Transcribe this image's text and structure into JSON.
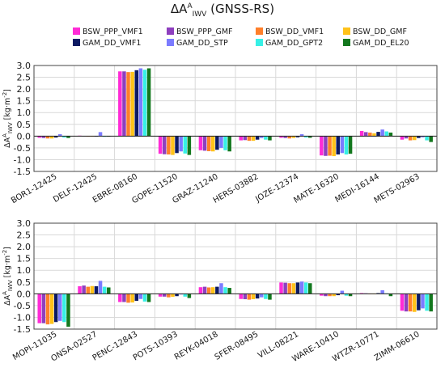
{
  "title": {
    "main": "ΔA",
    "sup": "A",
    "sub": "IWV",
    "suffix": " (GNSS-RS)"
  },
  "legend": [
    {
      "name": "BSW_PPP_VMF1",
      "color": "#ff2bd6"
    },
    {
      "name": "BSW_PPP_GMF",
      "color": "#8e3fbf"
    },
    {
      "name": "BSW_DD_VMF1",
      "color": "#ff7f2a"
    },
    {
      "name": "BSW_DD_GMF",
      "color": "#ffc21a"
    },
    {
      "name": "GAM_DD_VMF1",
      "color": "#0d1a63"
    },
    {
      "name": "GAM_DD_STP",
      "color": "#7b7bff"
    },
    {
      "name": "GAM_DD_GPT2",
      "color": "#37f0e6"
    },
    {
      "name": "GAM_DD_EL20",
      "color": "#13781e"
    }
  ],
  "chart_data": [
    {
      "type": "bar",
      "ylabel": {
        "base": "ΔA",
        "sup": "A",
        "sub": "IWV",
        "unit": " [kg·m",
        "unit_sup": "-2",
        "close": "]"
      },
      "ylim": [
        -1.5,
        3.0
      ],
      "yticks": [
        -1.5,
        -1.0,
        -0.5,
        0.0,
        0.5,
        1.0,
        1.5,
        2.0,
        2.5,
        3.0
      ],
      "grid": true,
      "categories": [
        "BOR1-12425",
        "DELF-12425",
        "EBRE-08160",
        "GOPE-11520",
        "GRAZ-11240",
        "HERS-03882",
        "JOZE-12374",
        "MATE-16320",
        "MEDI-16144",
        "METS-02963"
      ],
      "series": [
        {
          "name": "BSW_PPP_VMF1",
          "values": [
            -0.07,
            0.02,
            2.75,
            -0.75,
            -0.6,
            -0.18,
            -0.07,
            -0.82,
            0.22,
            -0.15
          ]
        },
        {
          "name": "BSW_PPP_GMF",
          "values": [
            -0.08,
            0.01,
            2.75,
            -0.77,
            -0.62,
            -0.17,
            -0.08,
            -0.84,
            0.17,
            -0.1
          ]
        },
        {
          "name": "BSW_DD_VMF1",
          "values": [
            -0.1,
            -0.02,
            2.72,
            -0.78,
            -0.64,
            -0.2,
            -0.1,
            -0.83,
            0.15,
            -0.18
          ]
        },
        {
          "name": "BSW_DD_GMF",
          "values": [
            -0.1,
            0.0,
            2.73,
            -0.8,
            -0.65,
            -0.2,
            -0.08,
            -0.85,
            0.12,
            -0.17
          ]
        },
        {
          "name": "GAM_DD_VMF1",
          "values": [
            -0.06,
            -0.02,
            2.8,
            -0.72,
            -0.58,
            -0.15,
            -0.05,
            -0.78,
            0.18,
            -0.08
          ]
        },
        {
          "name": "GAM_DD_STP",
          "values": [
            0.08,
            0.17,
            2.88,
            -0.65,
            -0.5,
            -0.08,
            0.08,
            -0.72,
            0.28,
            -0.05
          ]
        },
        {
          "name": "GAM_DD_GPT2",
          "values": [
            -0.06,
            -0.03,
            2.82,
            -0.74,
            -0.6,
            -0.15,
            -0.06,
            -0.78,
            0.2,
            -0.18
          ]
        },
        {
          "name": "GAM_DD_EL20",
          "values": [
            -0.08,
            -0.02,
            2.88,
            -0.8,
            -0.65,
            -0.18,
            -0.07,
            -0.75,
            0.15,
            -0.25
          ]
        }
      ]
    },
    {
      "type": "bar",
      "ylabel": {
        "base": "ΔA",
        "sup": "A",
        "sub": "IWV",
        "unit": " [kg·m",
        "unit_sup": "-2",
        "close": "]"
      },
      "ylim": [
        -1.5,
        3.0
      ],
      "yticks": [
        -1.5,
        -1.0,
        -0.5,
        0.0,
        0.5,
        1.0,
        1.5,
        2.0,
        2.5,
        3.0
      ],
      "grid": true,
      "categories": [
        "MOPI-11035",
        "ONSA-02527",
        "PENC-12843",
        "POTS-10393",
        "REYK-04018",
        "SFER-08495",
        "VILL-08221",
        "WARE-10410",
        "WTZR-10771",
        "ZIMM-06610"
      ],
      "series": [
        {
          "name": "BSW_PPP_VMF1",
          "values": [
            -1.25,
            0.32,
            -0.35,
            -0.12,
            0.28,
            -0.22,
            0.48,
            -0.08,
            0.03,
            -0.72
          ]
        },
        {
          "name": "BSW_PPP_GMF",
          "values": [
            -1.25,
            0.35,
            -0.35,
            -0.12,
            0.3,
            -0.23,
            0.47,
            -0.1,
            0.02,
            -0.75
          ]
        },
        {
          "name": "BSW_DD_VMF1",
          "values": [
            -1.3,
            0.3,
            -0.38,
            -0.15,
            0.27,
            -0.25,
            0.45,
            -0.1,
            0.0,
            -0.75
          ]
        },
        {
          "name": "BSW_DD_GMF",
          "values": [
            -1.28,
            0.33,
            -0.37,
            -0.13,
            0.28,
            -0.23,
            0.45,
            -0.1,
            0.0,
            -0.77
          ]
        },
        {
          "name": "GAM_DD_VMF1",
          "values": [
            -1.2,
            0.32,
            -0.3,
            -0.1,
            0.3,
            -0.2,
            0.48,
            -0.06,
            0.03,
            -0.7
          ]
        },
        {
          "name": "GAM_DD_STP",
          "values": [
            -1.15,
            0.55,
            -0.22,
            -0.03,
            0.45,
            -0.15,
            0.52,
            0.13,
            0.15,
            -0.62
          ]
        },
        {
          "name": "GAM_DD_GPT2",
          "values": [
            -1.2,
            0.3,
            -0.33,
            -0.12,
            0.28,
            -0.22,
            0.48,
            -0.08,
            0.02,
            -0.72
          ]
        },
        {
          "name": "GAM_DD_EL20",
          "values": [
            -1.4,
            0.27,
            -0.35,
            -0.18,
            0.25,
            -0.25,
            0.45,
            -0.1,
            -0.1,
            -0.75
          ]
        }
      ]
    }
  ]
}
